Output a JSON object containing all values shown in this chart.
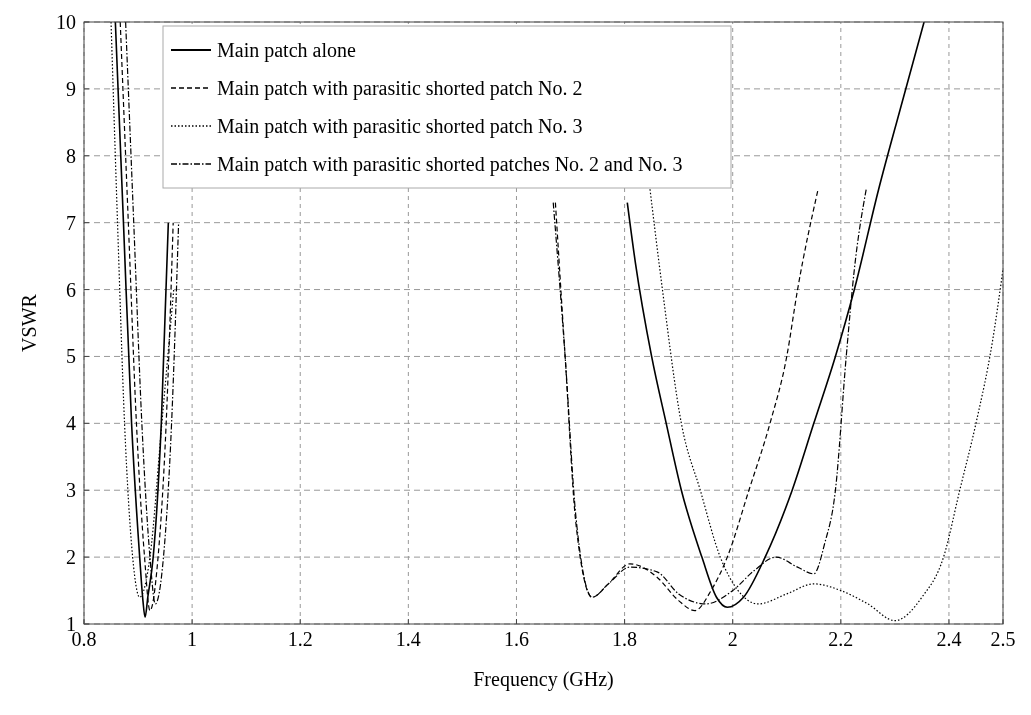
{
  "chart_data": {
    "type": "line",
    "xlabel": "Frequency (GHz)",
    "ylabel": "VSWR",
    "xlim": [
      0.8,
      2.5
    ],
    "ylim": [
      1,
      10
    ],
    "xticks": [
      0.8,
      1,
      1.2,
      1.4,
      1.6,
      1.8,
      2,
      2.2,
      2.4,
      2.5
    ],
    "yticks": [
      1,
      2,
      3,
      4,
      5,
      6,
      7,
      8,
      9,
      10
    ],
    "grid": true,
    "legend": "top",
    "series": [
      {
        "name": "Main patch alone",
        "color": "#000000",
        "line_style": "solid",
        "x": [
          0.858,
          0.873,
          0.888,
          0.903,
          0.909,
          0.913,
          0.918,
          0.928,
          0.943,
          0.956,
          null,
          1.805,
          1.82,
          1.85,
          1.877,
          1.905,
          1.943,
          1.97,
          1.99,
          2.02,
          2.06,
          2.11,
          2.15,
          2.19,
          2.225,
          2.27,
          2.31,
          2.354
        ],
        "values": [
          10,
          7,
          4,
          2,
          1.35,
          1.1,
          1.4,
          2,
          4,
          7,
          null,
          7.3,
          6.4,
          5,
          4,
          3,
          2,
          1.4,
          1.25,
          1.4,
          2,
          3,
          4,
          5,
          6,
          7.5,
          8.7,
          10
        ]
      },
      {
        "name": "Main patch with parasitic shorted patch No. 2",
        "color": "#000000",
        "line_style": "dashed",
        "x": [
          0.867,
          0.882,
          0.897,
          0.912,
          0.922,
          0.937,
          0.952,
          0.965,
          null,
          1.672,
          1.69,
          1.71,
          1.74,
          1.77,
          1.81,
          1.86,
          1.9,
          1.93,
          1.96,
          1.99,
          2.03,
          2.069,
          2.1,
          2.12,
          2.158
        ],
        "values": [
          10,
          7,
          4,
          2,
          1.2,
          2,
          4,
          7,
          null,
          7.3,
          5,
          2.5,
          1.4,
          1.6,
          1.9,
          1.7,
          1.35,
          1.2,
          1.5,
          2,
          3,
          4,
          5,
          6,
          7.5
        ]
      },
      {
        "name": "Main patch with parasitic shorted patch No. 3",
        "color": "#000000",
        "line_style": "dotted",
        "x": [
          0.85,
          0.862,
          0.875,
          0.89,
          0.903,
          0.922,
          0.944,
          0.966,
          null,
          1.847,
          1.87,
          1.905,
          1.94,
          1.977,
          2.01,
          2.047,
          2.1,
          2.15,
          2.2,
          2.25,
          2.3,
          2.35,
          2.39,
          2.42,
          2.45,
          2.48,
          2.5
        ],
        "values": [
          10,
          7,
          4,
          2,
          1.4,
          2,
          4,
          6,
          null,
          7.5,
          6,
          4,
          3,
          2,
          1.5,
          1.3,
          1.45,
          1.6,
          1.5,
          1.3,
          1.05,
          1.4,
          2,
          3,
          4,
          5.2,
          6.3
        ]
      },
      {
        "name": "Main patch with parasitic shorted patches No. 2 and No. 3",
        "color": "#000000",
        "line_style": "dashdot",
        "x": [
          0.877,
          0.892,
          0.907,
          0.922,
          0.932,
          0.947,
          0.962,
          0.975,
          null,
          1.668,
          1.69,
          1.71,
          1.74,
          1.77,
          1.81,
          1.86,
          1.9,
          1.95,
          2.0,
          2.04,
          2.08,
          2.12,
          2.15,
          2.17,
          2.19,
          2.21,
          2.225,
          2.247
        ],
        "values": [
          10,
          7,
          4,
          2,
          1.3,
          2,
          4,
          7,
          null,
          7.3,
          5,
          2.6,
          1.4,
          1.6,
          1.85,
          1.78,
          1.45,
          1.3,
          1.5,
          1.8,
          2.0,
          1.85,
          1.75,
          2.2,
          3,
          5,
          6.3,
          7.5
        ]
      }
    ]
  }
}
